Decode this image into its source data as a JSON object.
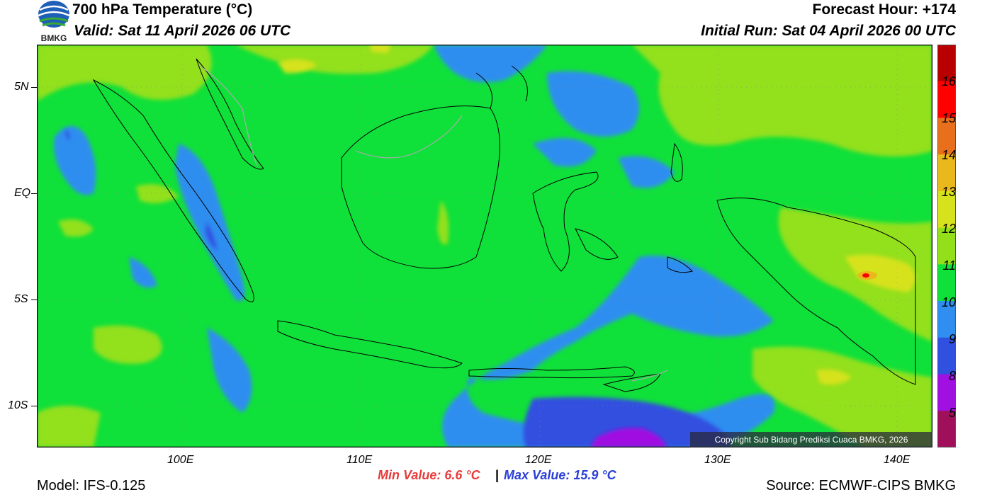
{
  "header": {
    "title": "700 hPa Temperature (°C)",
    "valid": "Valid: Sat 11 April 2026 06 UTC",
    "forecast_hour": "Forecast Hour: +174",
    "initial_run": "Initial Run: Sat 04 April 2026 00 UTC"
  },
  "logo": {
    "text": "BMKG"
  },
  "map": {
    "lat_labels": [
      "5N",
      "EQ",
      "5S",
      "10S"
    ],
    "lon_labels": [
      "100E",
      "110E",
      "120E",
      "130E",
      "140E"
    ],
    "copyright": "Copyright Sub Bidang Prediksi Cuaca BMKG, 2026"
  },
  "colorbar": {
    "labels": [
      "16",
      "15",
      "14",
      "13",
      "12",
      "11",
      "10",
      "9",
      "8",
      "5"
    ],
    "colors": [
      "#b80000",
      "#ff0000",
      "#e8701c",
      "#e8b81c",
      "#d6e21c",
      "#93e01a",
      "#10e03a",
      "#2f8ef0",
      "#3050e0",
      "#a010e0",
      "#a0105a"
    ]
  },
  "stats": {
    "min": "Min Value: 6.6 °C",
    "separator": "|",
    "max": "Max Value: 15.9 °C"
  },
  "footer": {
    "model": "Model: IFS-0.125",
    "source": "Source: ECMWF-CIPS BMKG"
  }
}
